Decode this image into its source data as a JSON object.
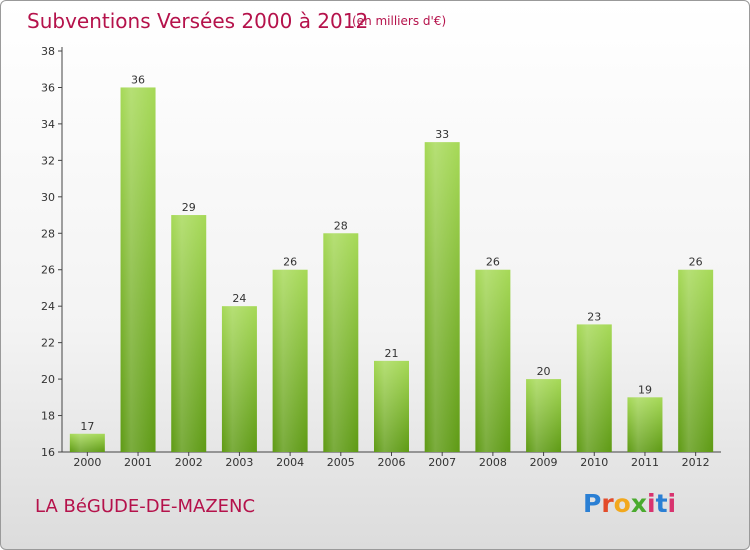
{
  "header": {
    "title": "Subventions Versées 2000 à 2012",
    "subtitle": "(en milliers d'€)"
  },
  "footer": {
    "commune": "LA BéGUDE-DE-MAZENC",
    "logo": [
      "P",
      "r",
      "o",
      "x",
      "i",
      "t",
      "i"
    ]
  },
  "chart_data": {
    "type": "bar",
    "title": "Subventions Versées 2000 à 2012",
    "subtitle": "(en milliers d'€)",
    "categories": [
      "2000",
      "2001",
      "2002",
      "2003",
      "2004",
      "2005",
      "2006",
      "2007",
      "2008",
      "2009",
      "2010",
      "2011",
      "2012"
    ],
    "values": [
      17,
      36,
      29,
      24,
      26,
      28,
      21,
      33,
      26,
      20,
      23,
      19,
      26
    ],
    "ylim": [
      16,
      38
    ],
    "yticks": [
      16,
      18,
      20,
      22,
      24,
      26,
      28,
      30,
      32,
      34,
      36,
      38
    ],
    "grid": false,
    "bar_color": "#7dbf2a",
    "bar_color_light": "#a6d957",
    "bar_color_dark": "#5e9a14"
  }
}
